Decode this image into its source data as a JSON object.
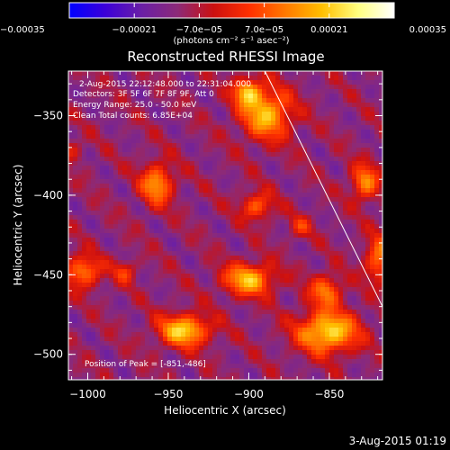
{
  "chart_data": {
    "type": "heatmap",
    "title": "Reconstructed RHESSI Image",
    "xlabel": "Heliocentric X (arcsec)",
    "ylabel": "Heliocentric Y (arcsec)",
    "xlim": [
      -1012,
      -817
    ],
    "ylim": [
      -516,
      -322
    ],
    "x_ticks": [
      -1000,
      -950,
      -900,
      -850
    ],
    "y_ticks": [
      -350,
      -400,
      -450,
      -500
    ],
    "x_tick_labels": [
      "−1000",
      "−950",
      "−900",
      "−850"
    ],
    "y_tick_labels": [
      "−350",
      "−400",
      "−450",
      "−500"
    ],
    "colorbar": {
      "range": [
        -0.00035,
        0.00035
      ],
      "tick_values": [
        -0.00035,
        -0.00021,
        -7e-05,
        7e-05,
        0.00021,
        0.00035
      ],
      "tick_labels": [
        "−0.00035",
        "−0.00021",
        "−7.0e−05",
        "7.0e−05",
        "0.00021",
        "0.00035"
      ],
      "unit_label": "(photons cm⁻² s⁻¹ asec⁻²)",
      "colors": [
        "#0000ff",
        "#3c00d8",
        "#6a1fa6",
        "#8c2a78",
        "#cc1010",
        "#ff3000",
        "#ff7a00",
        "#ffbf00",
        "#ffff80",
        "#ffffff"
      ]
    },
    "sources": [
      {
        "x": -957,
        "y": -393,
        "sx": 7,
        "sy": 9,
        "amp": 0.00026
      },
      {
        "x": -940,
        "y": -485,
        "sx": 11,
        "sy": 7,
        "amp": 0.00033
      },
      {
        "x": -851,
        "y": -486,
        "sx": 13,
        "sy": 9,
        "amp": 0.00035
      },
      {
        "x": -900,
        "y": -453,
        "sx": 11,
        "sy": 7,
        "amp": 0.0003
      },
      {
        "x": -889,
        "y": -349,
        "sx": 11,
        "sy": 11,
        "amp": 0.0003
      },
      {
        "x": -901,
        "y": -335,
        "sx": 6,
        "sy": 6,
        "amp": 0.00027
      },
      {
        "x": -895,
        "y": -407,
        "sx": 7,
        "sy": 6,
        "amp": 0.0002
      },
      {
        "x": -1003,
        "y": -448,
        "sx": 8,
        "sy": 7,
        "amp": 0.00024
      },
      {
        "x": -977,
        "y": -448,
        "sx": 5,
        "sy": 5,
        "amp": 0.00014
      },
      {
        "x": -852,
        "y": -460,
        "sx": 7,
        "sy": 7,
        "amp": 0.00022
      },
      {
        "x": -828,
        "y": -392,
        "sx": 6,
        "sy": 8,
        "amp": 0.00024
      },
      {
        "x": -819,
        "y": -440,
        "sx": 6,
        "sy": 10,
        "amp": 0.00023
      },
      {
        "x": -868,
        "y": -420,
        "sx": 5,
        "sy": 5,
        "amp": 0.00012
      },
      {
        "x": -1010,
        "y": -372,
        "sx": 5,
        "sy": 5,
        "amp": 0.0001
      }
    ],
    "limb_line": [
      [
        -890,
        -322
      ],
      [
        -817,
        -470
      ]
    ]
  },
  "info_lines": [
    "2-Aug-2015 22:12:48.000 to 22:31:04.000",
    "Detectors: 3F 5F 6F 7F 8F 9F, Att 0",
    "Energy Range: 25.0 - 50.0 keV",
    "Clean    Total counts: 6.85E+04"
  ],
  "peak_label": "Position of Peak = [-851,-486]",
  "timestamp": "3-Aug-2015 01:19"
}
